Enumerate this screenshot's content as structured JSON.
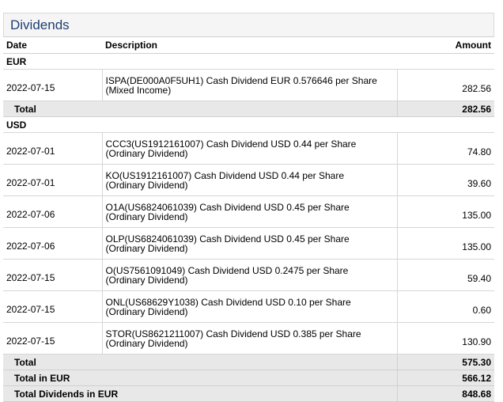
{
  "title": "Dividends",
  "columns": {
    "date": "Date",
    "description": "Description",
    "amount": "Amount"
  },
  "sections": [
    {
      "currency": "EUR",
      "rows": [
        {
          "date": "2022-07-15",
          "desc1": "ISPA(DE000A0F5UH1) Cash Dividend EUR 0.576646 per Share",
          "desc2": "(Mixed Income)",
          "amount": "282.56"
        }
      ],
      "total_label": "Total",
      "total": "282.56"
    },
    {
      "currency": "USD",
      "rows": [
        {
          "date": "2022-07-01",
          "desc1": "CCC3(US1912161007) Cash Dividend USD 0.44 per Share",
          "desc2": "(Ordinary Dividend)",
          "amount": "74.80"
        },
        {
          "date": "2022-07-01",
          "desc1": "KO(US1912161007) Cash Dividend USD 0.44 per Share",
          "desc2": "(Ordinary Dividend)",
          "amount": "39.60"
        },
        {
          "date": "2022-07-06",
          "desc1": "O1A(US6824061039) Cash Dividend USD 0.45 per Share",
          "desc2": "(Ordinary Dividend)",
          "amount": "135.00"
        },
        {
          "date": "2022-07-06",
          "desc1": "OLP(US6824061039) Cash Dividend USD 0.45 per Share",
          "desc2": "(Ordinary Dividend)",
          "amount": "135.00"
        },
        {
          "date": "2022-07-15",
          "desc1": "O(US7561091049) Cash Dividend USD 0.2475 per Share",
          "desc2": "(Ordinary Dividend)",
          "amount": "59.40"
        },
        {
          "date": "2022-07-15",
          "desc1": "ONL(US68629Y1038) Cash Dividend USD 0.10 per Share",
          "desc2": "(Ordinary Dividend)",
          "amount": "0.60"
        },
        {
          "date": "2022-07-15",
          "desc1": "STOR(US8621211007) Cash Dividend USD 0.385 per Share",
          "desc2": "(Ordinary Dividend)",
          "amount": "130.90"
        }
      ],
      "total_label": "Total",
      "total": "575.30",
      "total_eur_label": "Total in EUR",
      "total_eur": "566.12"
    }
  ],
  "grand_total_label": "Total Dividends in EUR",
  "grand_total": "848.68"
}
